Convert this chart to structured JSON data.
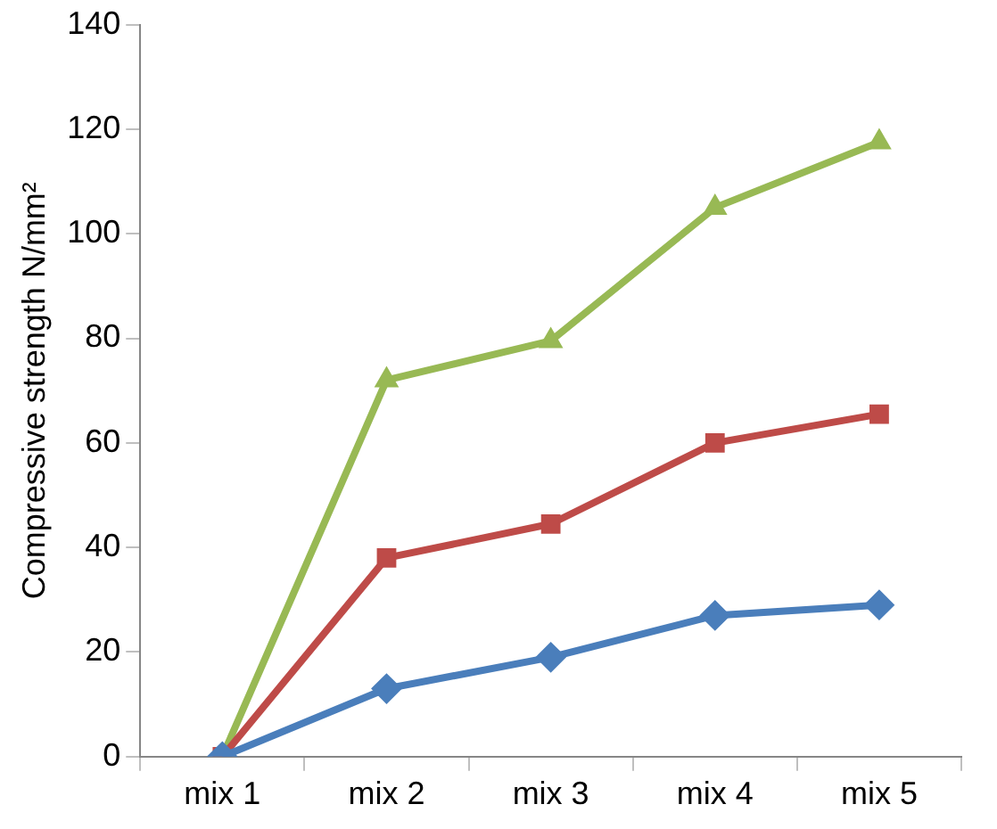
{
  "chart_data": {
    "type": "line",
    "ylabel": "Compressive strength N/mm²",
    "categories": [
      "mix 1",
      "mix 2",
      "mix 3",
      "mix 4",
      "mix 5"
    ],
    "series": [
      {
        "color": "#4a7ebb",
        "marker": "diamond",
        "values": [
          0,
          13,
          19,
          27,
          29
        ]
      },
      {
        "color": "#be4b48",
        "marker": "square",
        "values": [
          0,
          38,
          44.5,
          60,
          65.5
        ]
      },
      {
        "color": "#98b954",
        "marker": "triangle",
        "values": [
          0,
          72,
          79.5,
          105,
          117.5
        ]
      }
    ],
    "ylim": [
      0,
      140
    ],
    "yticks": [
      0,
      20,
      40,
      60,
      80,
      100,
      120,
      140
    ],
    "grid": false,
    "legend": false
  }
}
